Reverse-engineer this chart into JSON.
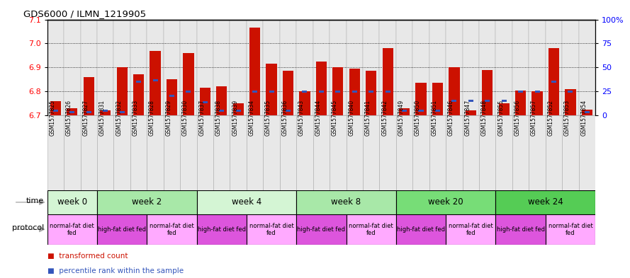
{
  "title": "GDS6000 / ILMN_1219905",
  "samples": [
    "GSM1577825",
    "GSM1577826",
    "GSM1577827",
    "GSM1577831",
    "GSM1577832",
    "GSM1577833",
    "GSM1577828",
    "GSM1577829",
    "GSM1577830",
    "GSM1577837",
    "GSM1577838",
    "GSM1577839",
    "GSM1577834",
    "GSM1577835",
    "GSM1577836",
    "GSM1577843",
    "GSM1577844",
    "GSM1577845",
    "GSM1577840",
    "GSM1577841",
    "GSM1577842",
    "GSM1577849",
    "GSM1577850",
    "GSM1577851",
    "GSM1577846",
    "GSM1577847",
    "GSM1577848",
    "GSM1577855",
    "GSM1577856",
    "GSM1577857",
    "GSM1577852",
    "GSM1577853",
    "GSM1577854"
  ],
  "red_values": [
    6.76,
    6.73,
    6.86,
    6.72,
    6.9,
    6.87,
    6.97,
    6.85,
    6.96,
    6.815,
    6.82,
    6.75,
    7.065,
    6.915,
    6.885,
    6.8,
    6.925,
    6.9,
    6.895,
    6.885,
    6.98,
    6.73,
    6.835,
    6.835,
    6.9,
    6.72,
    6.89,
    6.75,
    6.805,
    6.8,
    6.98,
    6.81,
    6.725
  ],
  "blue_values": [
    6.72,
    6.715,
    6.715,
    6.72,
    6.715,
    6.84,
    6.845,
    6.78,
    6.8,
    6.755,
    6.72,
    6.72,
    6.8,
    6.8,
    6.72,
    6.8,
    6.8,
    6.8,
    6.8,
    6.8,
    6.8,
    6.72,
    6.72,
    6.72,
    6.76,
    6.76,
    6.76,
    6.76,
    6.8,
    6.8,
    6.84,
    6.8,
    6.715
  ],
  "time_groups": [
    {
      "label": "week 0",
      "start": 0,
      "end": 3,
      "color": "#d4f5d4"
    },
    {
      "label": "week 2",
      "start": 3,
      "end": 9,
      "color": "#a8e8a8"
    },
    {
      "label": "week 4",
      "start": 9,
      "end": 15,
      "color": "#d4f5d4"
    },
    {
      "label": "week 8",
      "start": 15,
      "end": 21,
      "color": "#a8e8a8"
    },
    {
      "label": "week 20",
      "start": 21,
      "end": 27,
      "color": "#77dd77"
    },
    {
      "label": "week 24",
      "start": 27,
      "end": 33,
      "color": "#55cc55"
    }
  ],
  "protocol_groups": [
    {
      "label": "normal-fat diet\nfed",
      "start": 0,
      "end": 3,
      "color": "#ffaaff"
    },
    {
      "label": "high-fat diet fed",
      "start": 3,
      "end": 6,
      "color": "#dd55dd"
    },
    {
      "label": "normal-fat diet\nfed",
      "start": 6,
      "end": 9,
      "color": "#ffaaff"
    },
    {
      "label": "high-fat diet fed",
      "start": 9,
      "end": 12,
      "color": "#dd55dd"
    },
    {
      "label": "normal-fat diet\nfed",
      "start": 12,
      "end": 15,
      "color": "#ffaaff"
    },
    {
      "label": "high-fat diet fed",
      "start": 15,
      "end": 18,
      "color": "#dd55dd"
    },
    {
      "label": "normal-fat diet\nfed",
      "start": 18,
      "end": 21,
      "color": "#ffaaff"
    },
    {
      "label": "high-fat diet fed",
      "start": 21,
      "end": 24,
      "color": "#dd55dd"
    },
    {
      "label": "normal-fat diet\nfed",
      "start": 24,
      "end": 27,
      "color": "#ffaaff"
    },
    {
      "label": "high-fat diet fed",
      "start": 27,
      "end": 30,
      "color": "#dd55dd"
    },
    {
      "label": "normal-fat diet\nfed",
      "start": 30,
      "end": 33,
      "color": "#ffaaff"
    }
  ],
  "ymin": 6.7,
  "ymax": 7.1,
  "yticks_left": [
    6.7,
    6.8,
    6.9,
    7.0,
    7.1
  ],
  "yticks_right": [
    0,
    25,
    50,
    75,
    100
  ],
  "bar_color": "#cc1100",
  "blue_color": "#3355bb",
  "bg_color": "#ffffff"
}
